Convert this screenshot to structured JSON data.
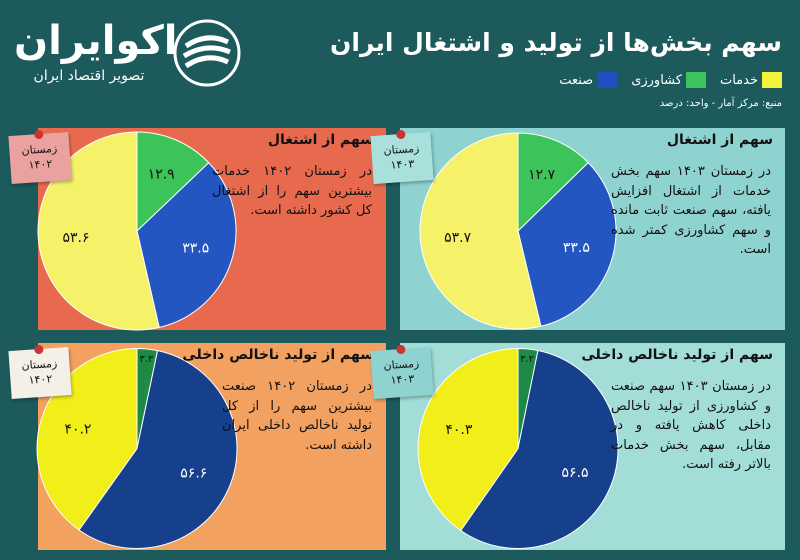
{
  "header": {
    "logo": "اکوایران",
    "tagline": "تصویر اقتصاد ایران",
    "title": "سهم بخش‌ها از تولید و اشتغال ایران",
    "source": "منبع: مرکز آمار - واحد: درصد"
  },
  "legend": {
    "labels": [
      "خدمات",
      "کشاورزی",
      "صنعت"
    ],
    "colors": [
      "#f5f23a",
      "#3cc35a",
      "#1f4fc0"
    ]
  },
  "chart_data": [
    {
      "type": "pie",
      "title": "سهم از اشتغال",
      "season": "زمستان ۱۴۰۲",
      "note": "در زمستان ۱۴۰۲ خدمات بیشترین سهم را از اشتغال کل کشور داشته است.",
      "values": [
        12.9,
        33.5,
        53.6
      ],
      "value_labels": [
        "۱۲.۹",
        "۳۳.۵",
        "۵۳.۶"
      ],
      "colors": [
        "#3cc35a",
        "#2456c2",
        "#f5f26a"
      ]
    },
    {
      "type": "pie",
      "title": "سهم از اشتغال",
      "season": "زمستان ۱۴۰۳",
      "note": "در زمستان ۱۴۰۳ سهم بخش خدمات از اشتغال افزایش یافته، سهم صنعت ثابت مانده و سهم کشاورزی کمتر شده است.",
      "values": [
        12.7,
        33.5,
        53.7
      ],
      "value_labels": [
        "۱۲.۷",
        "۳۳.۵",
        "۵۳.۷"
      ],
      "colors": [
        "#3cc35a",
        "#2456c2",
        "#f5f26a"
      ]
    },
    {
      "type": "pie",
      "title": "سهم از تولید ناخالص داخلی",
      "season": "زمستان ۱۴۰۲",
      "note": "در زمستان ۱۴۰۲ صنعت بیشترین سهم را از کل تولید ناخالص داخلی ایران داشته است.",
      "values": [
        3.3,
        56.6,
        40.2
      ],
      "value_labels": [
        "۳.۳",
        "۵۶.۶",
        "۴۰.۲"
      ],
      "colors": [
        "#1e8a45",
        "#163f8c",
        "#f2ee1a"
      ]
    },
    {
      "type": "pie",
      "title": "سهم از تولید ناخالص داخلی",
      "season": "زمستان ۱۴۰۳",
      "note": "در زمستان ۱۴۰۳ سهم صنعت و کشاورزی از تولید ناخالص داخلی کاهش یافته و در مقابل، سهم بخش خدمات بالاتر رفته است.",
      "values": [
        3.2,
        56.5,
        40.3
      ],
      "value_labels": [
        "۳.۲",
        "۵۶.۵",
        "۴۰.۳"
      ],
      "colors": [
        "#1e8a45",
        "#163f8c",
        "#f2ee1a"
      ]
    }
  ]
}
